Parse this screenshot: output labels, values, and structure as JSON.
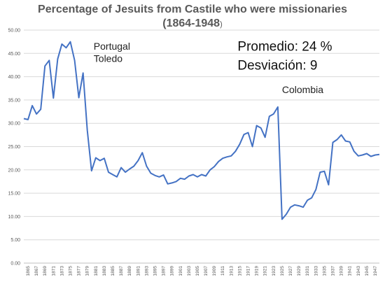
{
  "chart_data": {
    "type": "line",
    "title_line1": "Percentage of Jesuits from Castile who were missionaries",
    "title_line2": "(1864-1948",
    "title_line2_suffix": ")",
    "xlabel": "",
    "ylabel": "",
    "ylim": [
      0,
      50
    ],
    "y_ticks": [
      "0.00",
      "5.00",
      "10.00",
      "15.00",
      "20.00",
      "25.00",
      "30.00",
      "35.00",
      "40.00",
      "45.00",
      "50.00"
    ],
    "x_tick_labels": [
      "1865",
      "1867",
      "1869",
      "1871",
      "1873",
      "1875",
      "1877",
      "1879",
      "1881",
      "1883",
      "1885",
      "1887",
      "1889",
      "1891",
      "1893",
      "1895",
      "1897",
      "1899",
      "1901",
      "1903",
      "1905",
      "1907",
      "1909",
      "1911",
      "1913",
      "1915",
      "1917",
      "1919",
      "1921",
      "1923",
      "1925",
      "1927",
      "1929",
      "1931",
      "1933",
      "1935",
      "1937",
      "1939",
      "1941",
      "1943",
      "1945",
      "1947"
    ],
    "grid": true,
    "line_color": "#4472c4",
    "x": [
      1864,
      1865,
      1866,
      1867,
      1868,
      1869,
      1870,
      1871,
      1872,
      1873,
      1874,
      1875,
      1876,
      1877,
      1878,
      1879,
      1880,
      1881,
      1882,
      1883,
      1884,
      1885,
      1886,
      1887,
      1888,
      1889,
      1890,
      1891,
      1892,
      1893,
      1894,
      1895,
      1896,
      1897,
      1898,
      1899,
      1900,
      1901,
      1902,
      1903,
      1904,
      1905,
      1906,
      1907,
      1908,
      1909,
      1910,
      1911,
      1912,
      1913,
      1914,
      1915,
      1916,
      1917,
      1918,
      1919,
      1920,
      1921,
      1922,
      1923,
      1924,
      1925,
      1926,
      1927,
      1928,
      1929,
      1930,
      1931,
      1932,
      1933,
      1934,
      1935,
      1936,
      1937,
      1938,
      1939,
      1940,
      1941,
      1942,
      1943,
      1944,
      1945,
      1946,
      1947,
      1948
    ],
    "values": [
      31.0,
      30.8,
      33.8,
      32.0,
      33.0,
      42.3,
      43.5,
      35.4,
      43.8,
      47.0,
      46.2,
      47.5,
      43.5,
      35.5,
      40.8,
      28.5,
      19.8,
      22.6,
      22.0,
      22.5,
      19.5,
      19.0,
      18.5,
      20.5,
      19.5,
      20.2,
      20.8,
      22.0,
      23.7,
      20.8,
      19.3,
      18.8,
      18.5,
      18.9,
      17.0,
      17.2,
      17.5,
      18.2,
      18.0,
      18.7,
      19.0,
      18.5,
      19.0,
      18.7,
      20.0,
      20.7,
      21.8,
      22.5,
      22.8,
      23.0,
      24.0,
      25.5,
      27.6,
      28.0,
      25.0,
      29.5,
      29.0,
      27.0,
      31.5,
      32.0,
      33.5,
      9.4,
      10.5,
      12.0,
      12.5,
      12.3,
      12.0,
      13.5,
      14.0,
      15.8,
      19.5,
      19.7,
      16.8,
      25.9,
      26.5,
      27.5,
      26.2,
      26.0,
      24.0,
      23.0,
      23.2,
      23.5,
      22.9,
      23.2,
      23.3
    ],
    "annotations": [
      {
        "text": "Portugal",
        "x": 1880.5,
        "y": 45.8
      },
      {
        "text": "Toledo",
        "x": 1880.5,
        "y": 43.2
      },
      {
        "text": "Colombia",
        "x": 1925.0,
        "y": 36.5
      }
    ],
    "stats": [
      {
        "text": "Promedio: 24 %",
        "x": 1914.5,
        "y": 45.6
      },
      {
        "text": "Desviación: 9",
        "x": 1914.5,
        "y": 41.5
      }
    ]
  }
}
